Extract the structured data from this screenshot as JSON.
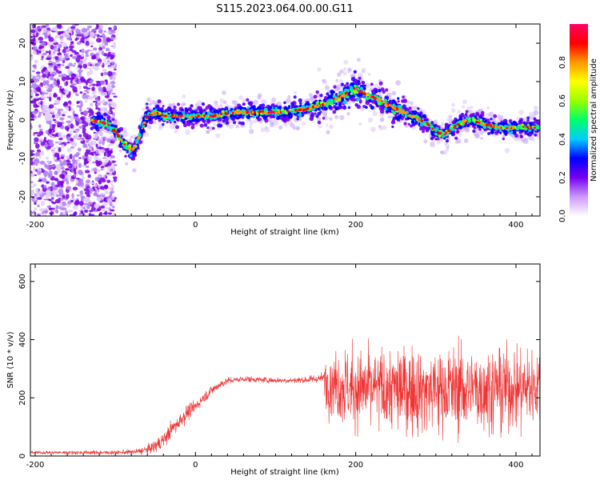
{
  "page": {
    "title": "S115.2023.064.00.00.G11"
  },
  "chart_data": [
    {
      "type": "heatmap",
      "xlabel": "Height of straight line (km)",
      "ylabel": "Frequency (Hz)",
      "xlim": [
        -206,
        430
      ],
      "ylim": [
        -25,
        25
      ],
      "xticks": [
        -200,
        0,
        200,
        400
      ],
      "yticks": [
        -20,
        -10,
        0,
        10,
        20
      ],
      "colorbar": {
        "label": "Normalized spectral amplitude",
        "range": [
          0,
          1
        ],
        "ticks": [
          0.0,
          0.2,
          0.4,
          0.6,
          0.8
        ],
        "colors": [
          "#ffffff",
          "#cc99ff",
          "#7700ee",
          "#0000ff",
          "#00ccff",
          "#00ff66",
          "#99ff00",
          "#ffff00",
          "#ff9900",
          "#ff0000",
          "#ff0066"
        ]
      },
      "ridge": {
        "x": [
          -130,
          -110,
          -100,
          -90,
          -80,
          -75,
          -70,
          -60,
          -50,
          -40,
          -20,
          0,
          20,
          50,
          80,
          110,
          140,
          160,
          180,
          200,
          210,
          230,
          250,
          270,
          290,
          300,
          310,
          320,
          340,
          360,
          380,
          400,
          420,
          430
        ],
        "y": [
          0,
          -1,
          -3,
          -6,
          -8,
          -7,
          -4,
          1,
          2,
          1,
          1,
          1,
          1,
          2,
          2,
          2,
          3,
          4,
          6,
          8,
          7,
          5,
          3,
          1,
          -1,
          -3,
          -4,
          -2,
          0,
          -1,
          -2,
          -2,
          -2,
          -2
        ]
      },
      "noise_region": [
        -206,
        -100
      ]
    },
    {
      "type": "line",
      "xlabel": "Height of straight line (km)",
      "ylabel": "SNR (10 * v/v)",
      "xlim": [
        -206,
        430
      ],
      "ylim": [
        0,
        660
      ],
      "xticks": [
        -200,
        0,
        200,
        400
      ],
      "yticks": [
        0,
        200,
        400,
        600
      ],
      "color": "#ee3333",
      "envelope": {
        "x": [
          -206,
          -100,
          -75,
          -60,
          -50,
          -40,
          -30,
          -20,
          -10,
          0,
          10,
          20,
          30,
          40,
          60,
          80,
          100,
          120,
          140,
          160,
          163,
          180,
          200,
          250,
          300,
          350,
          400,
          430
        ],
        "mean": [
          12,
          12,
          14,
          22,
          35,
          55,
          90,
          120,
          150,
          170,
          200,
          225,
          245,
          258,
          265,
          262,
          260,
          260,
          262,
          268,
          260,
          245,
          230,
          228,
          228,
          230,
          235,
          240
        ],
        "spread": [
          6,
          8,
          10,
          18,
          25,
          30,
          35,
          35,
          30,
          25,
          22,
          20,
          18,
          14,
          12,
          12,
          12,
          12,
          14,
          20,
          120,
          150,
          160,
          170,
          175,
          170,
          165,
          160
        ]
      }
    }
  ]
}
